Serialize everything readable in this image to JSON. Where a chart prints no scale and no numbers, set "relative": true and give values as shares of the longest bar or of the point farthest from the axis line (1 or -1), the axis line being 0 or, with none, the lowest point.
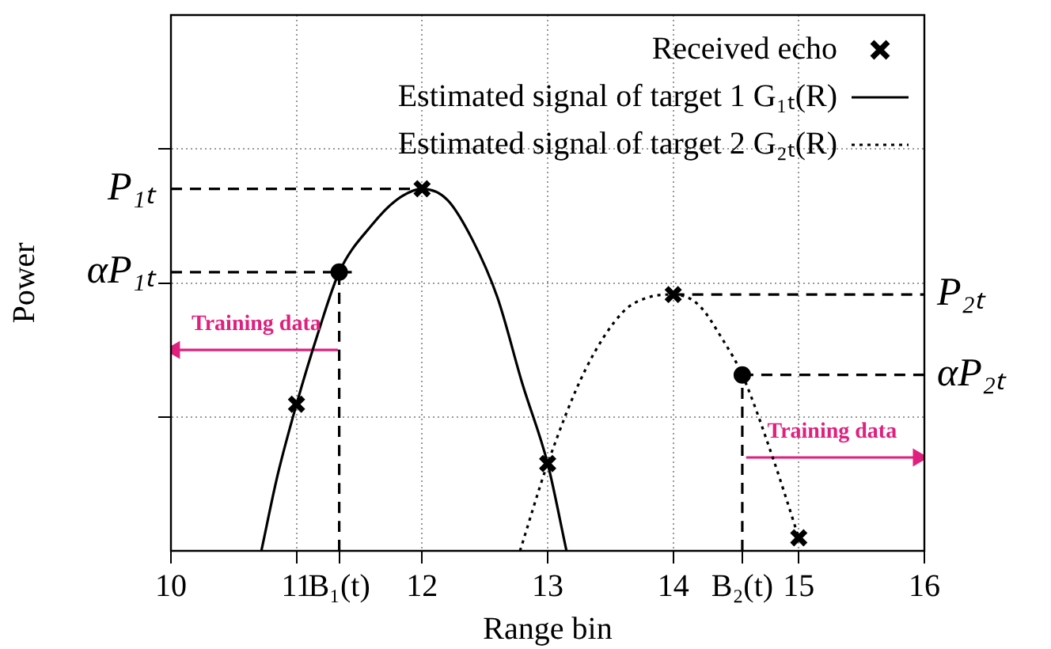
{
  "chart_data": {
    "type": "line",
    "xlabel": "Range bin",
    "ylabel": "Power",
    "relative": true,
    "xlim": [
      10,
      16
    ],
    "xticks": [
      10,
      11,
      {
        "value": 11.34,
        "label": "B₁(t)"
      },
      12,
      13,
      14,
      {
        "value": 14.55,
        "label": "B₂(t)"
      },
      15,
      16
    ],
    "grid": true,
    "legend": "top right",
    "series": [
      {
        "name": "Received echo",
        "type": "scatter",
        "marker": "cross",
        "color": "#000000",
        "x": [
          11,
          12,
          13,
          14,
          15
        ],
        "values": [
          0.405,
          1,
          0.241,
          0.708,
          0.036
        ]
      },
      {
        "name": "Estimated signal of target 1 G₁ₜ(R)",
        "line_style": "solid",
        "marker": "none",
        "color": "#000000",
        "x": [
          10.72,
          10.85,
          11,
          11.17,
          11.34,
          11.6,
          11.8,
          12,
          12.2,
          12.4,
          12.6,
          12.8,
          13,
          13.15
        ],
        "values": [
          0,
          0.21,
          0.405,
          0.6,
          0.77,
          0.9,
          0.97,
          1,
          0.97,
          0.86,
          0.7,
          0.46,
          0.241,
          0
        ]
      },
      {
        "name": "Estimated signal of target 2 G₂ₜ(R)",
        "line_style": "dotted",
        "marker": "none",
        "color": "#000000",
        "x": [
          12.78,
          13,
          13.3,
          13.6,
          13.8,
          14,
          14.2,
          14.4,
          14.55,
          14.8,
          15
        ],
        "values": [
          0,
          0.241,
          0.5,
          0.66,
          0.7,
          0.708,
          0.68,
          0.58,
          0.486,
          0.25,
          0.036
        ]
      },
      {
        "type": "scatter",
        "marker": "circle",
        "color": "#000000",
        "x": [
          11.34,
          14.55
        ],
        "values": [
          0.77,
          0.486
        ]
      },
      {
        "type": "line",
        "line_style": "dashed",
        "marker": "none",
        "color": "#000000",
        "x": [
          10,
          12
        ],
        "values": [
          1,
          1
        ]
      },
      {
        "type": "line",
        "line_style": "dashed",
        "marker": "none",
        "color": "#000000",
        "x": [
          10,
          11.44
        ],
        "values": [
          0.77,
          0.77
        ]
      },
      {
        "type": "line",
        "line_style": "dashed",
        "marker": "none",
        "color": "#000000",
        "x": [
          11.34,
          11.34
        ],
        "values": [
          0,
          0.77
        ]
      },
      {
        "type": "line",
        "line_style": "dashed",
        "marker": "none",
        "color": "#000000",
        "x": [
          14,
          16
        ],
        "values": [
          0.708,
          0.708
        ]
      },
      {
        "type": "line",
        "line_style": "dashed",
        "marker": "none",
        "color": "#000000",
        "x": [
          14.55,
          16
        ],
        "values": [
          0.486,
          0.486
        ]
      },
      {
        "type": "line",
        "line_style": "dashed",
        "marker": "none",
        "color": "#000000",
        "x": [
          14.55,
          14.55
        ],
        "values": [
          0,
          0.486
        ]
      },
      {
        "type": "line",
        "line_style": "solid",
        "marker": "triangle",
        "color": "#e0207f",
        "x": [
          11.33,
          10.03
        ],
        "values": [
          0.555,
          0.555
        ]
      },
      {
        "type": "line",
        "line_style": "solid",
        "marker": "triangle",
        "color": "#e0207f",
        "x": [
          14.58,
          15.95
        ],
        "values": [
          0.258,
          0.258
        ]
      }
    ],
    "annotations": [
      "P₁ₜ",
      "αP₁ₜ",
      "P₂ₜ",
      "αP₂ₜ",
      "Training data",
      "Training data"
    ]
  }
}
